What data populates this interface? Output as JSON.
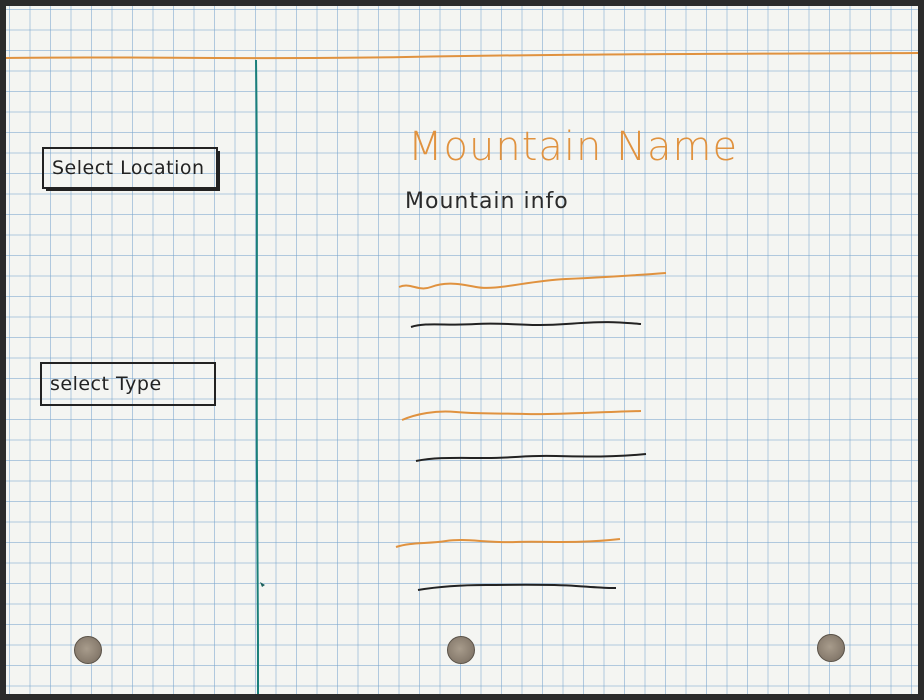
{
  "sidebar": {
    "location_select_label": "Select Location",
    "type_select_label": "select Type"
  },
  "main": {
    "mountain_name": "Mountain Name",
    "mountain_info": "Mountain info"
  },
  "colors": {
    "paper": "#f4f5f2",
    "grid": "#78a5cd",
    "accent_orange": "#e0923f",
    "ink": "#222222",
    "divider_teal": "#1a7f7a"
  }
}
